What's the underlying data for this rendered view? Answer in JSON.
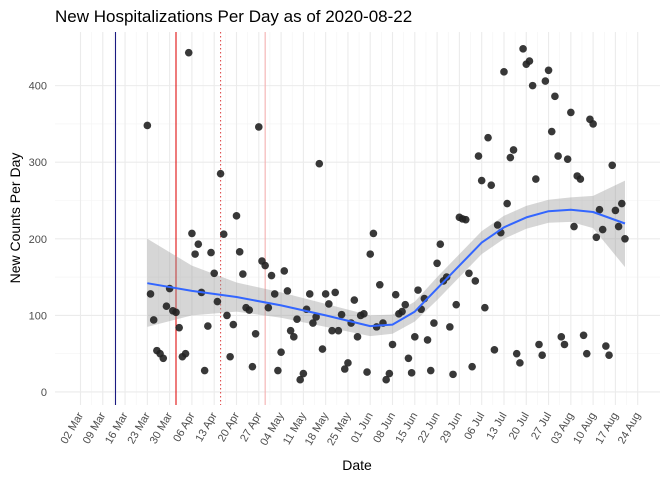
{
  "chart_data": {
    "type": "scatter",
    "title": "New Hospitalizations Per Day as of 2020-08-22",
    "xlabel": "Date",
    "ylabel": "New Counts Per Day",
    "color": "#222222",
    "x": [
      "23 Mar",
      "24 Mar",
      "25 Mar",
      "26 Mar",
      "27 Mar",
      "28 Mar",
      "29 Mar",
      "30 Mar",
      "31 Mar",
      "01 Apr",
      "02 Apr",
      "03 Apr",
      "04 Apr",
      "05 Apr",
      "06 Apr",
      "07 Apr",
      "08 Apr",
      "09 Apr",
      "10 Apr",
      "11 Apr",
      "12 Apr",
      "13 Apr",
      "14 Apr",
      "15 Apr",
      "16 Apr",
      "17 Apr",
      "18 Apr",
      "19 Apr",
      "20 Apr",
      "21 Apr",
      "22 Apr",
      "23 Apr",
      "24 Apr",
      "25 Apr",
      "26 Apr",
      "27 Apr",
      "28 Apr",
      "29 Apr",
      "30 Apr",
      "01 May",
      "02 May",
      "03 May",
      "04 May",
      "05 May",
      "06 May",
      "07 May",
      "08 May",
      "09 May",
      "10 May",
      "11 May",
      "12 May",
      "13 May",
      "14 May",
      "15 May",
      "16 May",
      "17 May",
      "18 May",
      "19 May",
      "20 May",
      "21 May",
      "22 May",
      "23 May",
      "24 May",
      "25 May",
      "26 May",
      "27 May",
      "28 May",
      "29 May",
      "30 May",
      "31 May",
      "01 Jun",
      "02 Jun",
      "03 Jun",
      "04 Jun",
      "05 Jun",
      "06 Jun",
      "07 Jun",
      "08 Jun",
      "09 Jun",
      "10 Jun",
      "11 Jun",
      "12 Jun",
      "13 Jun",
      "14 Jun",
      "15 Jun",
      "16 Jun",
      "17 Jun",
      "18 Jun",
      "19 Jun",
      "20 Jun",
      "21 Jun",
      "22 Jun",
      "23 Jun",
      "24 Jun",
      "25 Jun",
      "26 Jun",
      "27 Jun",
      "28 Jun",
      "29 Jun",
      "30 Jun",
      "01 Jul",
      "02 Jul",
      "03 Jul",
      "04 Jul",
      "05 Jul",
      "06 Jul",
      "07 Jul",
      "08 Jul",
      "09 Jul",
      "10 Jul",
      "11 Jul",
      "12 Jul",
      "13 Jul",
      "14 Jul",
      "15 Jul",
      "16 Jul",
      "17 Jul",
      "18 Jul",
      "19 Jul",
      "20 Jul",
      "21 Jul",
      "22 Jul",
      "23 Jul",
      "24 Jul",
      "25 Jul",
      "26 Jul",
      "27 Jul",
      "28 Jul",
      "29 Jul",
      "30 Jul",
      "31 Jul",
      "01 Aug",
      "02 Aug",
      "03 Aug",
      "04 Aug",
      "05 Aug",
      "06 Aug",
      "07 Aug",
      "08 Aug",
      "09 Aug",
      "10 Aug",
      "11 Aug",
      "12 Aug",
      "13 Aug",
      "14 Aug",
      "15 Aug",
      "16 Aug",
      "17 Aug",
      "18 Aug",
      "19 Aug",
      "20 Aug"
    ],
    "values": [
      348,
      128,
      94,
      54,
      50,
      44,
      112,
      135,
      106,
      104,
      84,
      46,
      50,
      443,
      207,
      180,
      193,
      130,
      28,
      86,
      182,
      155,
      118,
      285,
      206,
      100,
      46,
      88,
      230,
      183,
      154,
      110,
      107,
      33,
      76,
      346,
      171,
      165,
      110,
      152,
      128,
      28,
      52,
      158,
      132,
      80,
      72,
      95,
      16,
      24,
      108,
      128,
      90,
      98,
      298,
      56,
      128,
      115,
      80,
      130,
      80,
      101,
      30,
      38,
      90,
      120,
      72,
      100,
      102,
      26,
      180,
      207,
      85,
      140,
      90,
      16,
      24,
      62,
      127,
      102,
      105,
      114,
      44,
      25,
      72,
      133,
      108,
      122,
      68,
      28,
      90,
      168,
      193,
      145,
      150,
      85,
      23,
      114,
      228,
      226,
      225,
      155,
      33,
      145,
      308,
      276,
      110,
      332,
      270,
      55,
      218,
      208,
      418,
      246,
      306,
      316,
      50,
      38,
      448,
      428,
      432,
      400,
      278,
      62,
      48,
      406,
      420,
      340,
      386,
      308,
      72,
      62,
      304,
      365,
      216,
      282,
      278,
      74,
      50,
      356,
      350,
      202,
      238,
      212,
      60,
      48,
      296,
      237,
      216,
      246,
      200
    ],
    "smooth": {
      "color": "#3366ff",
      "x": [
        "23 Mar",
        "06 Apr",
        "20 Apr",
        "04 May",
        "18 May",
        "01 Jun",
        "08 Jun",
        "15 Jun",
        "22 Jun",
        "29 Jun",
        "06 Jul",
        "13 Jul",
        "20 Jul",
        "27 Jul",
        "03 Aug",
        "10 Aug",
        "20 Aug"
      ],
      "values": [
        142,
        132,
        124,
        113,
        100,
        86,
        88,
        105,
        135,
        165,
        195,
        215,
        228,
        236,
        238,
        235,
        220
      ],
      "lower": [
        85,
        100,
        105,
        97,
        85,
        73,
        76,
        92,
        120,
        150,
        180,
        200,
        213,
        221,
        222,
        214,
        163
      ],
      "upper": [
        200,
        165,
        143,
        130,
        115,
        100,
        101,
        118,
        150,
        180,
        210,
        230,
        243,
        251,
        254,
        256,
        276
      ]
    },
    "vlines": [
      {
        "x": "13 Mar",
        "color": "#1a1a80",
        "style": "solid"
      },
      {
        "x": "01 Apr",
        "color": "#e01010",
        "style": "solid"
      },
      {
        "x": "15 Apr",
        "color": "#e05050",
        "style": "dotted"
      },
      {
        "x": "29 Apr",
        "color": "#f4b0b0",
        "style": "solid"
      }
    ],
    "xlim": [
      "23 Feb",
      "31 Aug"
    ],
    "xticks": [
      "02 Mar",
      "09 Mar",
      "16 Mar",
      "23 Mar",
      "30 Mar",
      "06 Apr",
      "13 Apr",
      "20 Apr",
      "27 Apr",
      "04 May",
      "11 May",
      "18 May",
      "25 May",
      "01 Jun",
      "08 Jun",
      "15 Jun",
      "22 Jun",
      "29 Jun",
      "06 Jul",
      "13 Jul",
      "20 Jul",
      "27 Jul",
      "03 Aug",
      "10 Aug",
      "17 Aug",
      "24 Aug"
    ],
    "ylim": [
      -17,
      470
    ],
    "yticks": [
      0,
      100,
      200,
      300,
      400
    ],
    "grid": true
  }
}
